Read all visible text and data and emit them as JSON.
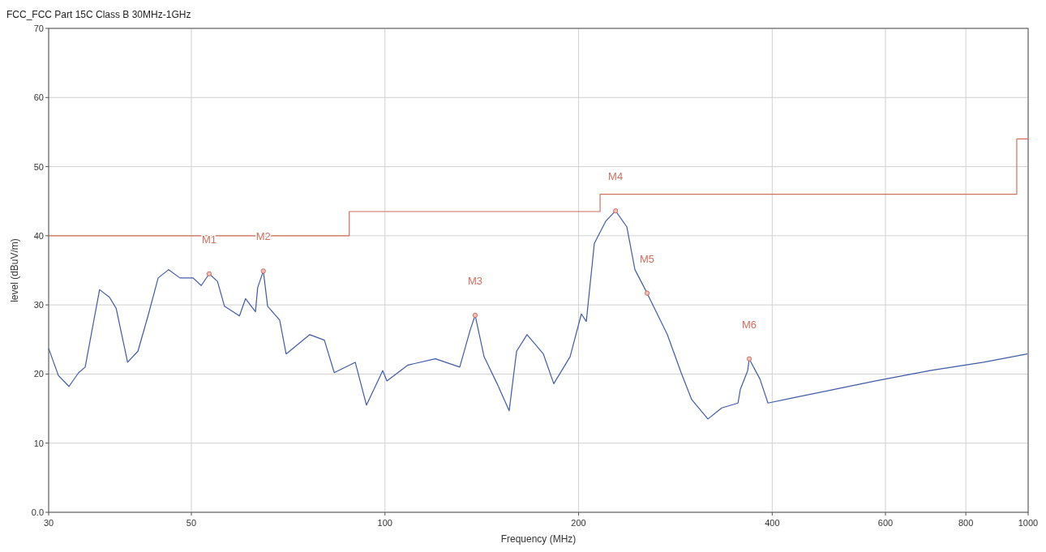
{
  "chart_data": {
    "type": "line",
    "title": "FCC_FCC Part 15C  Class B 30MHz-1GHz",
    "xlabel": "Frequency (MHz)",
    "ylabel": "level (dBuV/m)",
    "log": "x",
    "grid": true,
    "xlim": [
      30,
      1000
    ],
    "xticks": [
      30,
      50,
      100,
      200,
      400,
      600,
      800,
      1000
    ],
    "ylim": [
      0,
      70
    ],
    "yticks": [
      {
        "value": 0,
        "label": "0.0"
      },
      10,
      20,
      30,
      40,
      50,
      60,
      70
    ],
    "series": [
      {
        "color": "#3f5aa8",
        "x": [
          30,
          31.06,
          32.26,
          33.4,
          34.19,
          36.0,
          37.3,
          38.2,
          39.8,
          41.3,
          42.9,
          44.4,
          46.1,
          48.0,
          50.3,
          51.8,
          53.3,
          54.9,
          56.3,
          59.4,
          60.7,
          62.9,
          63.4,
          64.7,
          65.7,
          68.6,
          70.2,
          76.4,
          80.5,
          83.4,
          89.9,
          93.6,
          99.2,
          100.7,
          108.6,
          119.8,
          130.7,
          135.7,
          138.1,
          142.6,
          149.4,
          156.0,
          160.2,
          166.3,
          176.3,
          183.0,
          194.0,
          202.0,
          205.6,
          211.6,
          220.4,
          228.3,
          237.7,
          244.7,
          255.6,
          274.8,
          288.7,
          299.8,
          317.8,
          333.9,
          353.9,
          356.9,
          366.4,
          368.4,
          382.7,
          394.0,
          433.5,
          501.4,
          579.6,
          703.9,
          852.4,
          997
        ],
        "values": [
          23.7,
          19.8,
          18.2,
          20.2,
          21.0,
          32.2,
          31.1,
          29.5,
          21.7,
          23.3,
          28.7,
          33.9,
          35.1,
          33.9,
          33.9,
          32.8,
          34.5,
          33.4,
          29.8,
          28.4,
          30.9,
          29.0,
          32.5,
          34.9,
          29.8,
          27.8,
          22.9,
          25.7,
          24.9,
          20.2,
          21.7,
          15.5,
          20.5,
          19.0,
          21.3,
          22.2,
          21.0,
          26.4,
          28.5,
          22.5,
          18.6,
          14.7,
          23.3,
          25.7,
          22.9,
          18.6,
          22.5,
          28.7,
          27.6,
          38.9,
          42.1,
          43.6,
          41.3,
          35.1,
          31.7,
          25.7,
          20.2,
          16.3,
          13.5,
          15.1,
          15.8,
          17.8,
          20.5,
          22.2,
          19.3,
          15.8,
          16.6,
          17.8,
          19.0,
          20.5,
          21.7,
          22.9
        ]
      },
      {
        "type": "step",
        "color": "#d0705f",
        "x": [
          30,
          88,
          216,
          960,
          1000
        ],
        "values": [
          40,
          43.5,
          46,
          54,
          54
        ]
      },
      {
        "type": "scatter",
        "color": "#d0705f",
        "marker": "circle",
        "x": [
          53.3,
          64.7,
          138.1,
          228.3,
          255.6,
          368.4
        ],
        "values": [
          34.5,
          34.9,
          28.5,
          43.6,
          31.7,
          22.2
        ]
      }
    ],
    "annotations": [
      {
        "text": "M1",
        "x": 53.3,
        "y": 34.5
      },
      {
        "text": "M2",
        "x": 64.7,
        "y": 34.9
      },
      {
        "text": "M3",
        "x": 138.1,
        "y": 28.5
      },
      {
        "text": "M4",
        "x": 228.3,
        "y": 43.6
      },
      {
        "text": "M5",
        "x": 255.6,
        "y": 31.7
      },
      {
        "text": "M6",
        "x": 368.4,
        "y": 22.2
      }
    ]
  }
}
